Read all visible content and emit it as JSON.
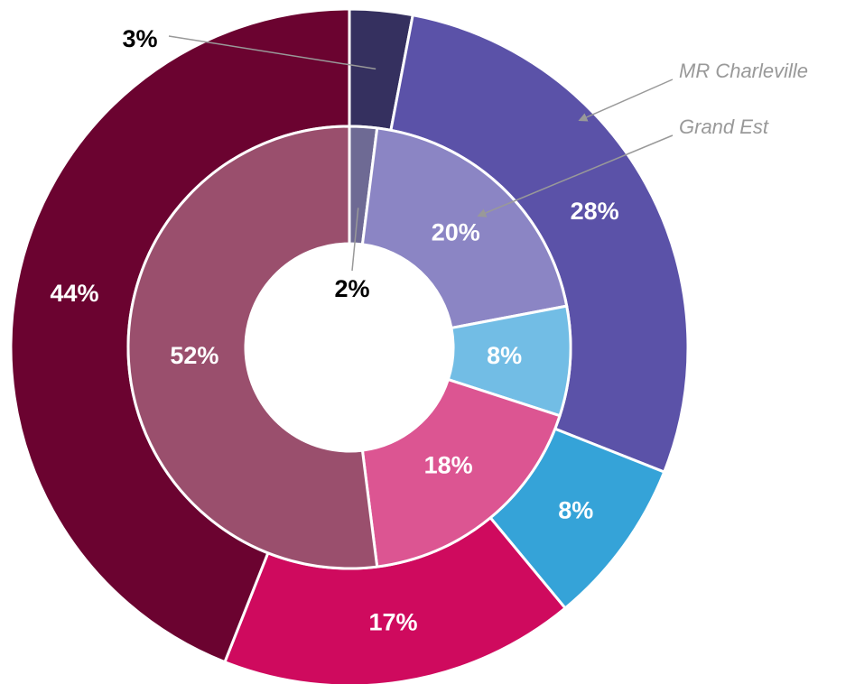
{
  "chart_data": {
    "type": "donut",
    "series": [
      {
        "name": "MR Charleville",
        "values": [
          3,
          28,
          8,
          17,
          44
        ],
        "value_labels": [
          "3%",
          "28%",
          "8%",
          "17%",
          "44%"
        ],
        "colors": [
          "#35305f",
          "#5b52a8",
          "#35a3d8",
          "#cf0a5e",
          "#6b0330"
        ]
      },
      {
        "name": "Grand Est",
        "values": [
          2,
          20,
          8,
          18,
          52
        ],
        "value_labels": [
          "2%",
          "20%",
          "8%",
          "18%",
          "52%"
        ],
        "colors": [
          "#6e6a94",
          "#8b85c4",
          "#72bde5",
          "#dc5592",
          "#9a4f6d"
        ]
      }
    ]
  }
}
